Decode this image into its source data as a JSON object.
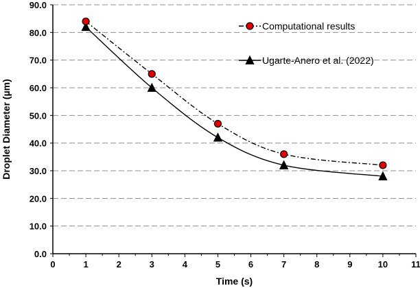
{
  "chart_data": {
    "type": "line",
    "title": "",
    "xlabel": "Time (s)",
    "ylabel": "Droplet Diameter (µm)",
    "xlim": [
      0,
      11
    ],
    "ylim": [
      0,
      90
    ],
    "xticks": [
      0,
      1,
      2,
      3,
      4,
      5,
      6,
      7,
      8,
      9,
      10,
      11
    ],
    "xtick_labels": [
      "0",
      "1",
      "2",
      "3",
      "4",
      "5",
      "6",
      "7",
      "8",
      "9",
      "10",
      "11"
    ],
    "yticks": [
      0,
      10,
      20,
      30,
      40,
      50,
      60,
      70,
      80,
      90
    ],
    "ytick_labels": [
      "0.0",
      "10.0",
      "20.0",
      "30.0",
      "40.0",
      "50.0",
      "60.0",
      "70.0",
      "80.0",
      "90.0"
    ],
    "grid": "horizontal dashed",
    "legend_position": "top-right",
    "series": [
      {
        "name": "Computational results",
        "x": [
          1,
          3,
          5,
          7,
          10
        ],
        "values": [
          84,
          65,
          47,
          36,
          32
        ],
        "marker": "circle",
        "marker_color": "#e00000",
        "line_style": "dash-dot",
        "line_color": "#000000"
      },
      {
        "name": "Ugarte-Anero et al. (2022)",
        "x": [
          1,
          3,
          5,
          7,
          10
        ],
        "values": [
          82,
          60,
          42,
          32,
          28
        ],
        "marker": "triangle",
        "marker_color": "#000000",
        "line_style": "solid",
        "line_color": "#000000"
      }
    ]
  }
}
